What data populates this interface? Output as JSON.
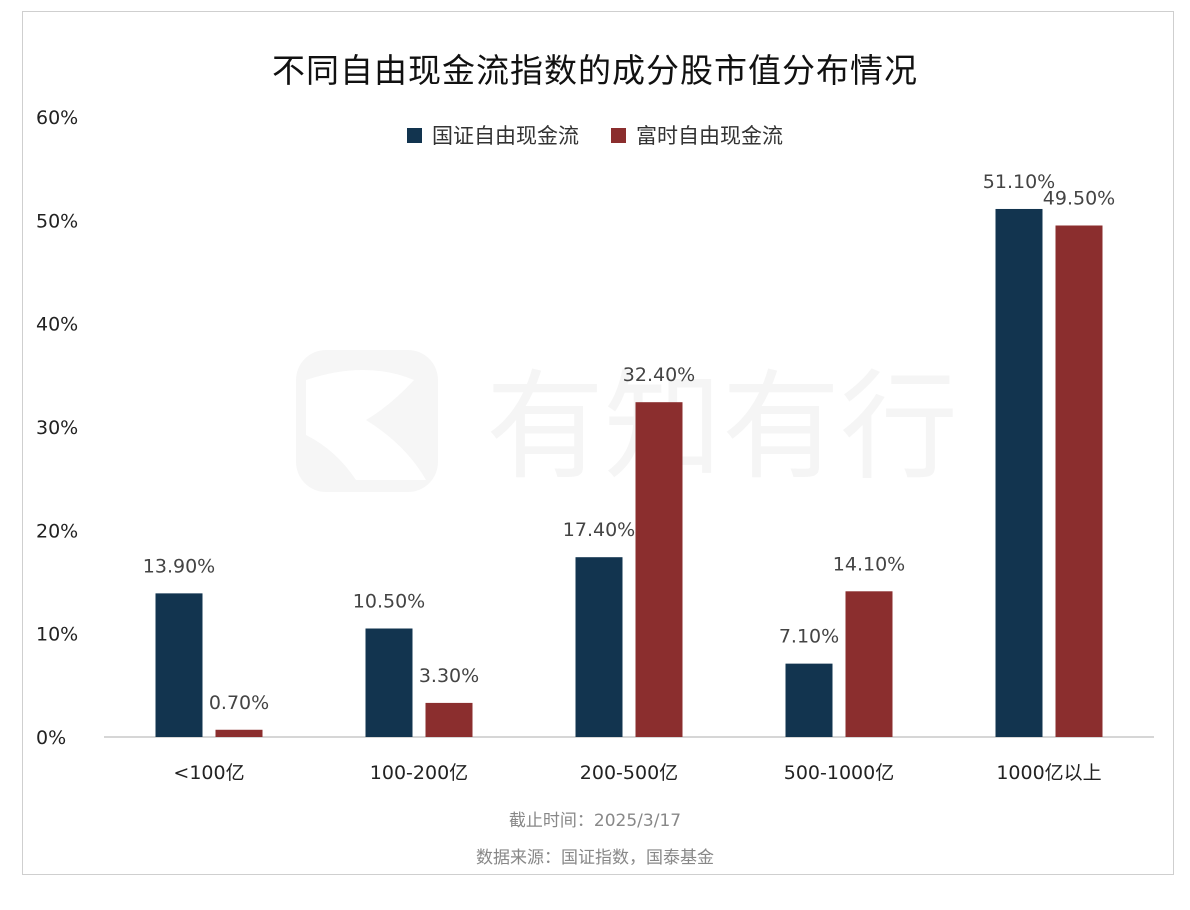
{
  "title": "不同自由现金流指数的成分股市值分布情况",
  "legend": [
    {
      "name": "国证自由现金流",
      "color": "#12344f"
    },
    {
      "name": "富时自由现金流",
      "color": "#8b2e2e"
    }
  ],
  "notes": {
    "date": "截止时间：2025/3/17",
    "source": "数据来源：国证指数，国泰基金"
  },
  "watermark": {
    "text": "有知有行"
  },
  "chart_data": {
    "type": "bar",
    "title": "不同自由现金流指数的成分股市值分布情况",
    "categories": [
      "<100亿",
      "100-200亿",
      "200-500亿",
      "500-1000亿",
      "1000亿以上"
    ],
    "series": [
      {
        "name": "国证自由现金流",
        "color": "#12344f",
        "values": [
          13.9,
          10.5,
          17.4,
          7.1,
          51.1
        ],
        "labels": [
          "13.90%",
          "10.50%",
          "17.40%",
          "7.10%",
          "51.10%"
        ]
      },
      {
        "name": "富时自由现金流",
        "color": "#8b2e2e",
        "values": [
          0.7,
          3.3,
          32.4,
          14.1,
          49.5
        ],
        "labels": [
          "0.70%",
          "3.30%",
          "32.40%",
          "14.10%",
          "49.50%"
        ]
      }
    ],
    "ylim": [
      0,
      60
    ],
    "yticks": [
      "0%",
      "10%",
      "20%",
      "30%",
      "40%",
      "50%",
      "60%"
    ],
    "grid": false,
    "legend_position": "top-center"
  }
}
